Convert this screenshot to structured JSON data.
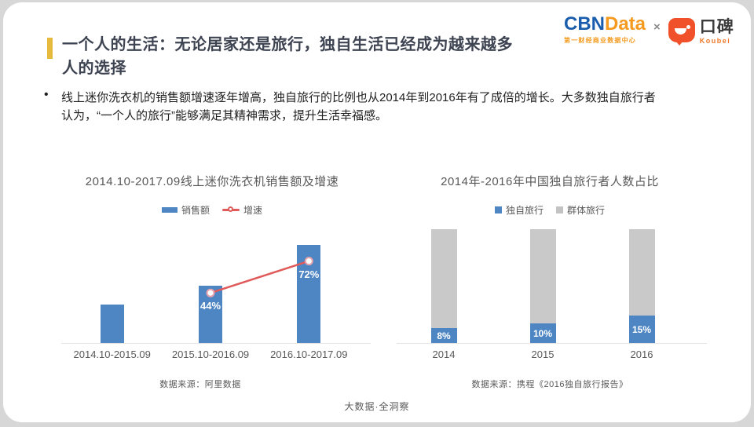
{
  "header": {
    "title_line1": "一个人的生活：无论居家还是旅行，独自生活已经成为越来越多",
    "title_line2": "人的选择",
    "bullet_char": "•",
    "bullet": {
      "line1": "线上迷你洗衣机的销售额增速逐年增高，独自旅行的比例也从2014年到2016年有了成倍的增长。大多数独自旅行者",
      "line2": "认为，“一个人的旅行”能够满足其精神需求，提升生活幸福感。"
    }
  },
  "brand": {
    "cbn": "CBN",
    "data": "Data",
    "subtitle": "第一财经商业数据中心",
    "x": "×",
    "koubei_cn": "口碑",
    "koubei_en": "Koubei"
  },
  "colors": {
    "accent_gold": "#e7b93c",
    "bar_blue": "#4e86c4",
    "bar_gray": "#c9c9c9",
    "line_red": "#e05a5a",
    "title_dark": "#3d4351",
    "text_gray": "#595959",
    "cbn_blue": "#1a5dad",
    "cbn_orange": "#f59a1e",
    "koubei_orange": "#f0512a"
  },
  "chart_data": [
    {
      "type": "bar",
      "title": "2014.10-2017.09线上迷你洗衣机销售额及增速",
      "categories": [
        "2014.10-2015.09",
        "2015.10-2016.09",
        "2016.10-2017.09"
      ],
      "series": [
        {
          "name": "销售额",
          "type": "bar",
          "heights_pct_of_plot": [
            34,
            50,
            86
          ],
          "note": "no numeric y-axis shown; heights estimated from pixels"
        },
        {
          "name": "增速",
          "type": "line",
          "values": [
            null,
            44,
            72
          ],
          "labels": [
            "",
            "44%",
            "72%"
          ]
        }
      ],
      "ylabel": "",
      "xlabel": "",
      "grid": false,
      "legend_position": "top",
      "source": "数据来源：阿里数据"
    },
    {
      "type": "bar",
      "subtype": "stacked-100pct",
      "title": "2014年-2016年中国独自旅行者人数占比",
      "categories": [
        "2014",
        "2015",
        "2016"
      ],
      "series": [
        {
          "name": "独自旅行",
          "values": [
            8,
            10,
            15
          ],
          "labels": [
            "8%",
            "10%",
            "15%"
          ],
          "visual_height_pct": [
            13,
            17,
            24
          ]
        },
        {
          "name": "群体旅行",
          "values": [
            92,
            90,
            85
          ]
        }
      ],
      "ylabel": "",
      "xlabel": "",
      "grid": false,
      "legend_position": "top",
      "source": "数据来源：携程《2016独自旅行报告》"
    }
  ],
  "footer": {
    "text": "大数据·全洞察"
  }
}
